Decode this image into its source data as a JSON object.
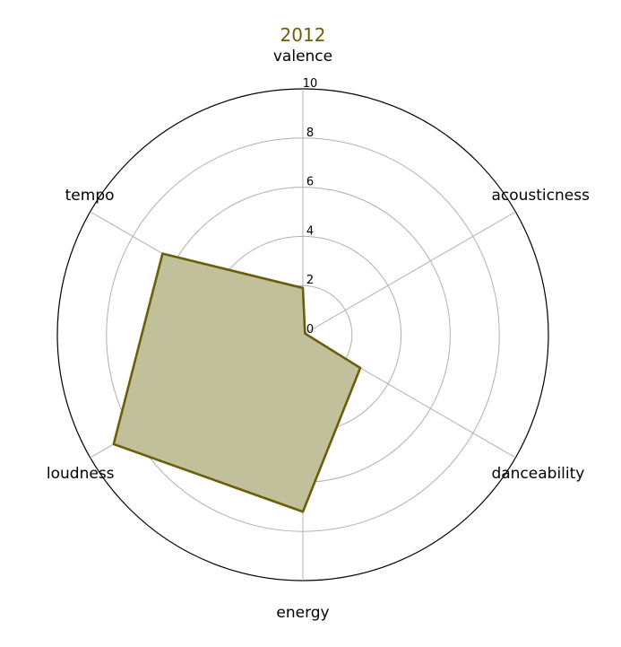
{
  "chart_data": {
    "type": "radar",
    "title": "2012",
    "categories": [
      "valence",
      "acousticness",
      "danceability",
      "energy",
      "loudness",
      "tempo"
    ],
    "series": [
      {
        "name": "2012",
        "values": [
          1.9,
          0.1,
          2.7,
          7.2,
          8.9,
          6.6
        ]
      }
    ],
    "rlim": [
      0,
      10
    ],
    "rticks": [
      "0",
      "2",
      "4",
      "6",
      "8",
      "10"
    ],
    "grid": true,
    "colors": {
      "line": "#6b5e0a",
      "fill": "#c2bf9b",
      "title": "#6b5e0a",
      "grid": "#b0b0b0",
      "outer": "#000000"
    }
  }
}
